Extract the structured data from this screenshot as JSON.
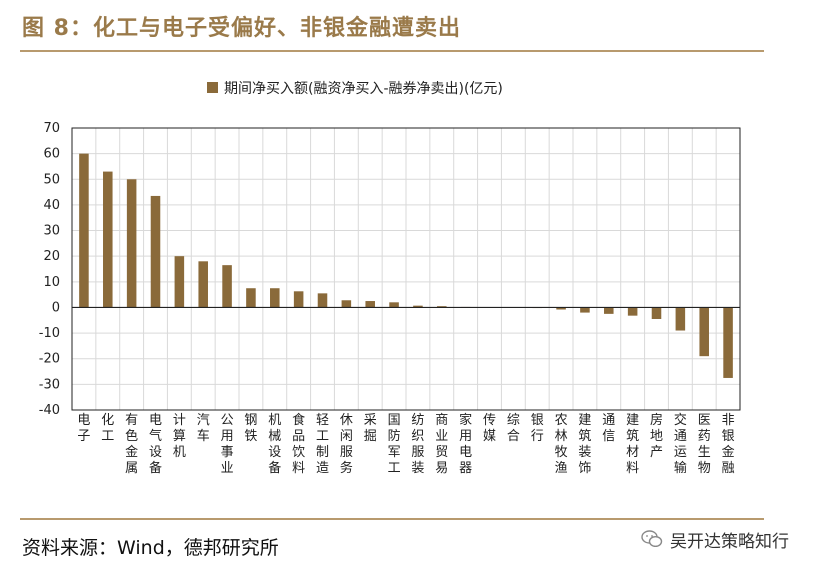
{
  "figure": {
    "title": "图 8：化工与电子受偏好、非银金融遭卖出",
    "source": "资料来源：Wind，德邦研究所",
    "watermark": "吴开达策略知行"
  },
  "colors": {
    "bar": "#8a6a3a",
    "accent": "#b89a6e",
    "title": "#9a7a4a",
    "grid": "#d9d9d9"
  },
  "icons": {
    "watermark": "wechat-icon"
  },
  "chart_data": {
    "type": "bar",
    "title": "",
    "xlabel": "",
    "ylabel": "",
    "ylim": [
      -40,
      70
    ],
    "yticks": [
      70,
      60,
      50,
      40,
      30,
      20,
      10,
      0,
      -10,
      -20,
      -30,
      -40
    ],
    "grid": true,
    "legend_position": "top-center",
    "categories": [
      "电子",
      "化工",
      "有色金属",
      "电气设备",
      "计算机",
      "汽车",
      "公用事业",
      "钢铁",
      "机械设备",
      "食品饮料",
      "轻工制造",
      "休闲服务",
      "采掘",
      "国防军工",
      "纺织服装",
      "商业贸易",
      "家用电器",
      "传媒",
      "综合",
      "银行",
      "农林牧渔",
      "建筑装饰",
      "通信",
      "建筑材料",
      "房地产",
      "交通运输",
      "医药生物",
      "非银金融"
    ],
    "series": [
      {
        "name": "期间净买入额(融资净买入-融券净卖出)(亿元)",
        "values": [
          60,
          53,
          50,
          43.5,
          20,
          18,
          16.5,
          7.5,
          7.5,
          6.3,
          5.5,
          2.8,
          2.5,
          2.0,
          0.7,
          0.5,
          0.2,
          0.1,
          0.05,
          0.0,
          -0.8,
          -2.0,
          -2.5,
          -3.2,
          -4.5,
          -9.0,
          -19.0,
          -27.5
        ]
      }
    ]
  }
}
